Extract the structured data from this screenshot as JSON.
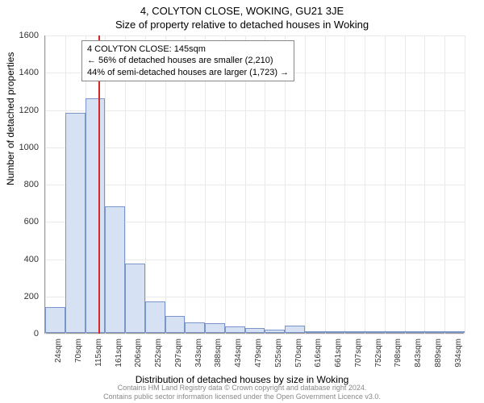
{
  "header": {
    "address": "4, COLYTON CLOSE, WOKING, GU21 3JE",
    "subtitle": "Size of property relative to detached houses in Woking"
  },
  "chart": {
    "type": "histogram",
    "ylabel": "Number of detached properties",
    "xlabel": "Distribution of detached houses by size in Woking",
    "ylim": [
      0,
      1600
    ],
    "ytick_step": 200,
    "yticks": [
      0,
      200,
      400,
      600,
      800,
      1000,
      1200,
      1400,
      1600
    ],
    "xticks": [
      "24sqm",
      "70sqm",
      "115sqm",
      "161sqm",
      "206sqm",
      "252sqm",
      "297sqm",
      "343sqm",
      "388sqm",
      "434sqm",
      "479sqm",
      "525sqm",
      "570sqm",
      "616sqm",
      "661sqm",
      "707sqm",
      "752sqm",
      "798sqm",
      "843sqm",
      "889sqm",
      "934sqm"
    ],
    "bars": [
      140,
      1180,
      1260,
      680,
      370,
      170,
      90,
      55,
      50,
      35,
      25,
      18,
      40,
      8,
      5,
      4,
      3,
      2,
      2,
      1,
      1
    ],
    "bar_fill": "#d7e1f4",
    "bar_stroke": "#7a95c9",
    "grid_color": "#e9e9e9",
    "background_color": "#ffffff",
    "marker": {
      "position_index": 2.65,
      "color": "#d62728"
    },
    "annotation": {
      "line1": "4 COLYTON CLOSE: 145sqm",
      "line2": "← 56% of detached houses are smaller (2,210)",
      "line3": "44% of semi-detached houses are larger (1,723) →",
      "border_color": "#888888",
      "bg_color": "#ffffff"
    }
  },
  "footer": {
    "line1": "Contains HM Land Registry data © Crown copyright and database right 2024.",
    "line2": "Contains public sector information licensed under the Open Government Licence v3.0."
  }
}
